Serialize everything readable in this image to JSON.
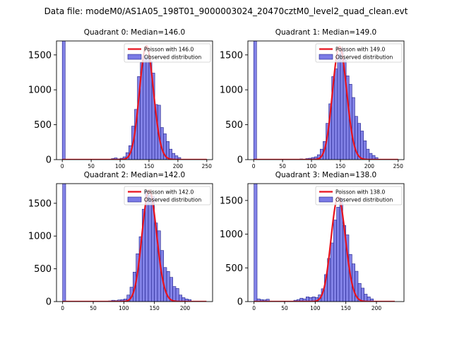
{
  "chart_data": {
    "suptitle": "Data file: modeM0/AS1A05_198T01_9000003024_20470cztM0_level2_quad_clean.evt",
    "colors": {
      "bar_fill": "#7b7be6",
      "bar_edge": "#1f1f8a",
      "line": "#e8121d",
      "axis": "#000000"
    },
    "panels": [
      {
        "type": "bar",
        "title": "Quadrant 0: Median=146.0",
        "legend": {
          "location": "upper right",
          "line_label": "Poisson with 146.0",
          "bar_label": "Observed distribution"
        },
        "xlim": [
          -10,
          260
        ],
        "ylim": [
          0,
          1700
        ],
        "xticks": [
          "0",
          "50",
          "100",
          "150",
          "200",
          "250"
        ],
        "yticks": [
          "0",
          "500",
          "1000",
          "1500"
        ],
        "bin_width": 5,
        "bins": [
          [
            0,
            1700
          ],
          [
            85,
            15
          ],
          [
            90,
            25
          ],
          [
            95,
            10
          ],
          [
            100,
            20
          ],
          [
            105,
            40
          ],
          [
            110,
            100
          ],
          [
            115,
            200
          ],
          [
            120,
            480
          ],
          [
            125,
            720
          ],
          [
            130,
            1190
          ],
          [
            135,
            1390
          ],
          [
            140,
            1490
          ],
          [
            145,
            1460
          ],
          [
            150,
            1410
          ],
          [
            155,
            1240
          ],
          [
            160,
            790
          ],
          [
            165,
            780
          ],
          [
            170,
            460
          ],
          [
            175,
            370
          ],
          [
            180,
            260
          ],
          [
            185,
            150
          ],
          [
            190,
            90
          ],
          [
            195,
            55
          ],
          [
            200,
            30
          ]
        ],
        "poisson_mean": 146.0,
        "poisson_amp": 1630,
        "poisson_xrange": [
          0,
          250
        ]
      },
      {
        "type": "bar",
        "title": "Quadrant 1: Median=149.0",
        "legend": {
          "location": "upper right",
          "line_label": "Poisson with 149.0",
          "bar_label": "Observed distribution"
        },
        "xlim": [
          -10,
          260
        ],
        "ylim": [
          0,
          1700
        ],
        "xticks": [
          "0",
          "50",
          "100",
          "150",
          "200",
          "250"
        ],
        "yticks": [
          "0",
          "500",
          "1000",
          "1500"
        ],
        "bin_width": 5,
        "bins": [
          [
            0,
            1700
          ],
          [
            80,
            10
          ],
          [
            90,
            15
          ],
          [
            95,
            20
          ],
          [
            100,
            30
          ],
          [
            105,
            40
          ],
          [
            110,
            70
          ],
          [
            115,
            150
          ],
          [
            120,
            260
          ],
          [
            125,
            520
          ],
          [
            130,
            800
          ],
          [
            135,
            1190
          ],
          [
            140,
            1300
          ],
          [
            145,
            1510
          ],
          [
            150,
            1590
          ],
          [
            155,
            1440
          ],
          [
            160,
            1200
          ],
          [
            165,
            1080
          ],
          [
            170,
            890
          ],
          [
            175,
            620
          ],
          [
            180,
            520
          ],
          [
            185,
            410
          ],
          [
            190,
            270
          ],
          [
            195,
            150
          ],
          [
            200,
            90
          ],
          [
            205,
            60
          ],
          [
            210,
            30
          ]
        ],
        "poisson_mean": 149.0,
        "poisson_amp": 1620,
        "poisson_xrange": [
          0,
          250
        ]
      },
      {
        "type": "bar",
        "title": "Quadrant 2: Median=142.0",
        "legend": {
          "location": "upper right",
          "line_label": "Poisson with 142.0",
          "bar_label": "Observed distribution"
        },
        "xlim": [
          -10,
          245
        ],
        "ylim": [
          0,
          1800
        ],
        "xticks": [
          "0",
          "50",
          "100",
          "150",
          "200"
        ],
        "yticks": [
          "0",
          "500",
          "1000",
          "1500"
        ],
        "bin_width": 5,
        "bins": [
          [
            0,
            1800
          ],
          [
            75,
            10
          ],
          [
            80,
            20
          ],
          [
            85,
            15
          ],
          [
            90,
            25
          ],
          [
            95,
            30
          ],
          [
            100,
            40
          ],
          [
            105,
            100
          ],
          [
            110,
            220
          ],
          [
            115,
            450
          ],
          [
            120,
            730
          ],
          [
            125,
            990
          ],
          [
            130,
            1410
          ],
          [
            135,
            1690
          ],
          [
            140,
            1620
          ],
          [
            145,
            1600
          ],
          [
            150,
            1200
          ],
          [
            155,
            1080
          ],
          [
            160,
            780
          ],
          [
            165,
            520
          ],
          [
            170,
            460
          ],
          [
            175,
            370
          ],
          [
            180,
            230
          ],
          [
            185,
            200
          ],
          [
            190,
            100
          ],
          [
            195,
            60
          ],
          [
            200,
            40
          ],
          [
            205,
            30
          ]
        ],
        "poisson_mean": 142.0,
        "poisson_amp": 1700,
        "poisson_xrange": [
          0,
          235
        ]
      },
      {
        "type": "bar",
        "title": "Quadrant 3: Median=138.0",
        "legend": {
          "location": "upper right",
          "line_label": "Poisson with 138.0",
          "bar_label": "Observed distribution"
        },
        "xlim": [
          -10,
          245
        ],
        "ylim": [
          0,
          1750
        ],
        "xticks": [
          "0",
          "50",
          "100",
          "150",
          "200"
        ],
        "yticks": [
          "0",
          "500",
          "1000",
          "1500"
        ],
        "bin_width": 5,
        "bins": [
          [
            0,
            1750
          ],
          [
            5,
            40
          ],
          [
            10,
            30
          ],
          [
            15,
            25
          ],
          [
            20,
            35
          ],
          [
            65,
            20
          ],
          [
            70,
            30
          ],
          [
            75,
            50
          ],
          [
            80,
            40
          ],
          [
            85,
            70
          ],
          [
            90,
            60
          ],
          [
            95,
            70
          ],
          [
            100,
            60
          ],
          [
            105,
            100
          ],
          [
            110,
            190
          ],
          [
            115,
            400
          ],
          [
            120,
            640
          ],
          [
            125,
            870
          ],
          [
            130,
            1210
          ],
          [
            135,
            1400
          ],
          [
            140,
            1530
          ],
          [
            145,
            1130
          ],
          [
            150,
            990
          ],
          [
            155,
            700
          ],
          [
            160,
            560
          ],
          [
            165,
            450
          ],
          [
            170,
            270
          ],
          [
            175,
            200
          ],
          [
            180,
            110
          ],
          [
            185,
            70
          ],
          [
            190,
            40
          ]
        ],
        "poisson_mean": 138.0,
        "poisson_amp": 1550,
        "poisson_xrange": [
          0,
          230
        ]
      }
    ]
  }
}
